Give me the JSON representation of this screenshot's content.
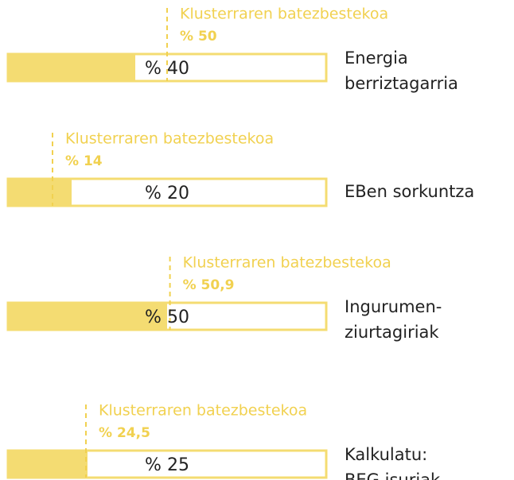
{
  "chart_data": {
    "type": "bar",
    "orientation": "horizontal",
    "categories": [
      [
        "Energia",
        "berriztagarria"
      ],
      [
        "EBen sorkuntza"
      ],
      [
        "Ingurumen-",
        "ziurtagiriak"
      ],
      [
        "Kalkulatu:",
        "BEG isuriak"
      ]
    ],
    "values": [
      40,
      20,
      50,
      25
    ],
    "value_labels": [
      "% 40",
      "% 20",
      "% 50",
      "% 25"
    ],
    "average_name": "Klusterraren batezbestekoa",
    "averages": [
      50,
      14,
      50.9,
      24.5
    ],
    "average_labels": [
      "% 50",
      "% 14",
      "% 50,9",
      "% 24,5"
    ],
    "xlim": [
      0,
      100
    ],
    "color": "#f4dc72",
    "average_color": "#f1d150"
  }
}
